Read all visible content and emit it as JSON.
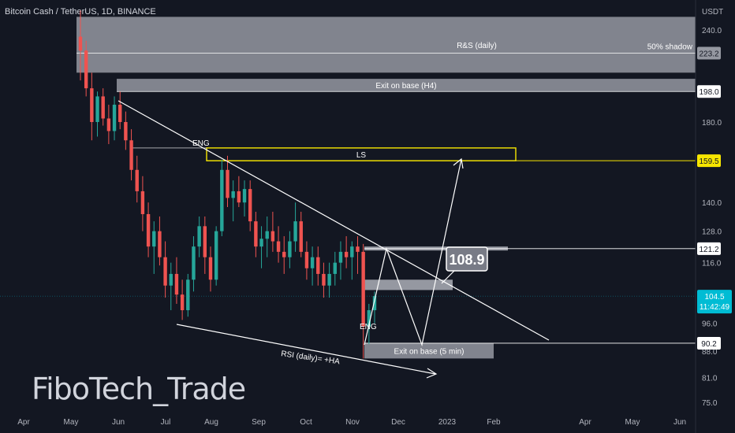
{
  "header": {
    "title": "Bitcoin Cash / TetherUS, 1D, BINANCE"
  },
  "watermark": "FiboTech_Trade",
  "chart_data": {
    "type": "candlestick",
    "currency": "USDT",
    "y_ticks": [
      75.0,
      81.0,
      88.0,
      96.0,
      104.5,
      116.0,
      128.0,
      140.0,
      159.5,
      180.0,
      198.0,
      223.2,
      240.0
    ],
    "y_tick_labels": [
      "75.0",
      "81.0",
      "88.0",
      "96.0",
      "",
      "116.0",
      "128.0",
      "140.0",
      "",
      "180.0",
      "",
      "",
      "240.0"
    ],
    "x_ticks": [
      "Apr",
      "May",
      "Jun",
      "Jul",
      "Aug",
      "Sep",
      "Oct",
      "Nov",
      "Dec",
      "2023",
      "Feb",
      "Apr",
      "May",
      "Jun"
    ],
    "price_tags": [
      {
        "value": "223.2",
        "style": "grey"
      },
      {
        "value": "198.0",
        "style": "white"
      },
      {
        "value": "159.5",
        "style": "yellow"
      },
      {
        "value": "121.2",
        "style": "white"
      },
      {
        "value": "90.2",
        "style": "white"
      }
    ],
    "last_price": {
      "value": "104.5",
      "countdown": "11:42:49",
      "color": "#00bcd4"
    },
    "zones": [
      {
        "label": "R&S (daily)",
        "note": "50% shadow",
        "from": 210,
        "to": 250,
        "start": "May",
        "color": "#9598a1"
      },
      {
        "label": "Exit on base (H4)",
        "from": 198,
        "to": 206,
        "start": "Jun",
        "color": "#9598a1"
      },
      {
        "label": "LS",
        "from": 159.5,
        "to": 166,
        "start": "Aug",
        "color": "#f7e600"
      },
      {
        "label": "Exit on base (5 min)",
        "from": 86,
        "to": 90.2,
        "start": "Nov",
        "color": "#9598a1"
      }
    ],
    "annotations": [
      "ENG",
      "ENG",
      "RSI (daily)= +HA"
    ],
    "callout": "108.9",
    "candles": [
      [
        235,
        255,
        205,
        225
      ],
      [
        225,
        232,
        195,
        200
      ],
      [
        200,
        210,
        170,
        180
      ],
      [
        180,
        198,
        172,
        195
      ],
      [
        195,
        200,
        178,
        182
      ],
      [
        182,
        190,
        168,
        175
      ],
      [
        175,
        195,
        170,
        190
      ],
      [
        190,
        198,
        176,
        180
      ],
      [
        180,
        186,
        165,
        170
      ],
      [
        170,
        176,
        150,
        155
      ],
      [
        155,
        162,
        140,
        145
      ],
      [
        145,
        152,
        128,
        135
      ],
      [
        135,
        140,
        118,
        122
      ],
      [
        122,
        132,
        112,
        128
      ],
      [
        128,
        134,
        115,
        118
      ],
      [
        118,
        124,
        104,
        108
      ],
      [
        108,
        116,
        100,
        112
      ],
      [
        112,
        118,
        102,
        105
      ],
      [
        105,
        110,
        97,
        100
      ],
      [
        100,
        112,
        98,
        110
      ],
      [
        110,
        126,
        106,
        122
      ],
      [
        122,
        134,
        118,
        130
      ],
      [
        130,
        134,
        112,
        118
      ],
      [
        118,
        122,
        106,
        110
      ],
      [
        110,
        130,
        108,
        128
      ],
      [
        128,
        160,
        126,
        155
      ],
      [
        155,
        162,
        138,
        142
      ],
      [
        142,
        150,
        132,
        145
      ],
      [
        145,
        152,
        138,
        140
      ],
      [
        140,
        150,
        134,
        146
      ],
      [
        146,
        150,
        128,
        132
      ],
      [
        132,
        136,
        118,
        122
      ],
      [
        122,
        130,
        114,
        125
      ],
      [
        125,
        134,
        118,
        128
      ],
      [
        128,
        136,
        120,
        124
      ],
      [
        124,
        130,
        116,
        120
      ],
      [
        120,
        126,
        112,
        118
      ],
      [
        118,
        128,
        114,
        124
      ],
      [
        124,
        140,
        120,
        132
      ],
      [
        132,
        136,
        118,
        120
      ],
      [
        120,
        124,
        110,
        114
      ],
      [
        114,
        122,
        108,
        118
      ],
      [
        118,
        122,
        108,
        112
      ],
      [
        112,
        116,
        104,
        108
      ],
      [
        108,
        116,
        104,
        112
      ],
      [
        112,
        120,
        108,
        116
      ],
      [
        116,
        124,
        110,
        120
      ],
      [
        120,
        126,
        114,
        118
      ],
      [
        118,
        124,
        110,
        122
      ],
      [
        122,
        126,
        112,
        120
      ],
      [
        120,
        123,
        86,
        95
      ],
      [
        95,
        102,
        90,
        100
      ],
      [
        100,
        106,
        96,
        104.5
      ]
    ]
  }
}
